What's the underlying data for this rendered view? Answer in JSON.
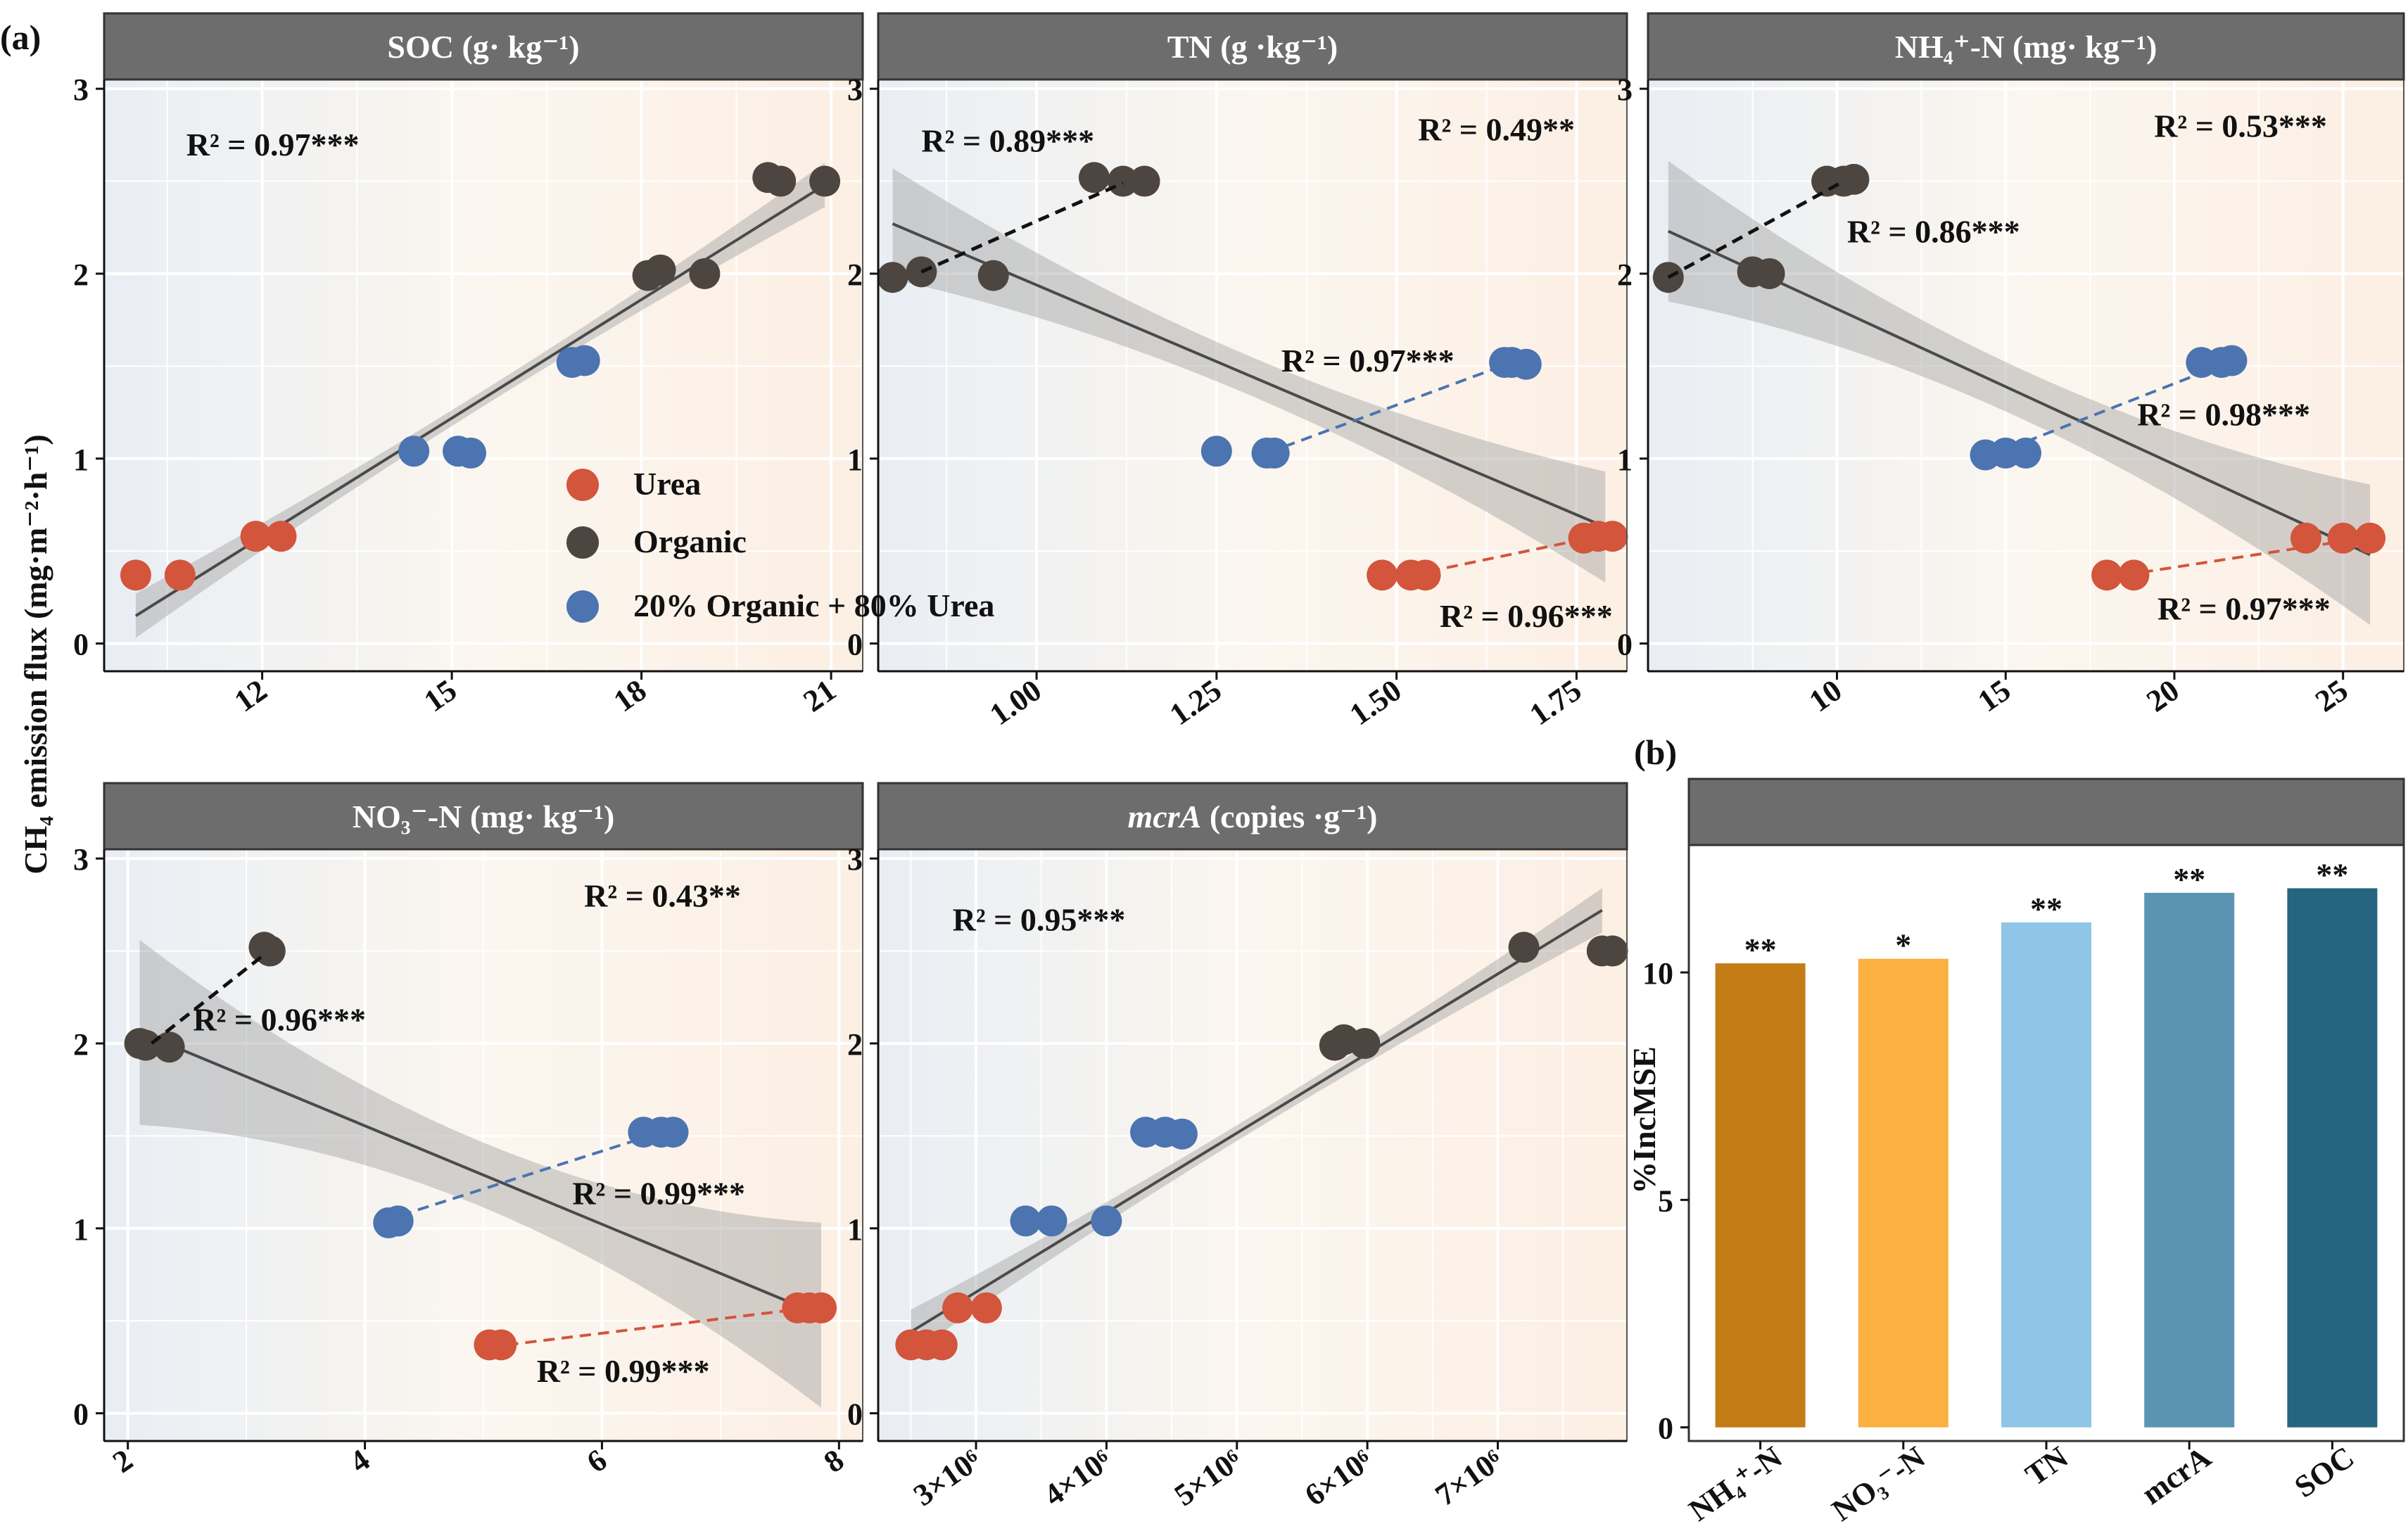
{
  "labels": {
    "panel_a": "(a)",
    "panel_b": "(b)",
    "y_axis_a": "CH₄ emission flux (mg·m⁻²·h⁻¹)",
    "y_axis_b": "%IncMSE"
  },
  "legend": [
    {
      "label": "Urea",
      "color": "#d2553c"
    },
    {
      "label": "Organic",
      "color": "#4d4640"
    },
    {
      "label": "20% Organic + 80% Urea",
      "color": "#4b74b0"
    }
  ],
  "colors": {
    "urea": "#d2553c",
    "organic": "#4d4640",
    "mix": "#4b74b0",
    "strip": "#6d6d6d"
  },
  "chart_data": [
    {
      "type": "scatter",
      "title": "SOC (g· kg⁻¹)",
      "xlim": [
        9.5,
        21.5
      ],
      "ylim": [
        -0.15,
        3.05
      ],
      "xticks": [
        12,
        15,
        18,
        21
      ],
      "xtick_labels": [
        "12",
        "15",
        "18",
        "21"
      ],
      "yticks": [
        0,
        1,
        2,
        3
      ],
      "ytick_labels": [
        "0",
        "1",
        "2",
        "3"
      ],
      "series": [
        {
          "name": "Urea",
          "x": [
            10.0,
            10.7,
            11.9,
            12.3
          ],
          "y": [
            0.37,
            0.37,
            0.58,
            0.58
          ]
        },
        {
          "name": "Organic",
          "x": [
            18.1,
            18.3,
            19.0,
            20.0,
            20.2,
            20.9
          ],
          "y": [
            1.99,
            2.02,
            2.0,
            2.52,
            2.5,
            2.5
          ]
        },
        {
          "name": "20% Organic + 80% Urea",
          "x": [
            14.4,
            15.1,
            15.3,
            16.9,
            17.1
          ],
          "y": [
            1.04,
            1.04,
            1.03,
            1.52,
            1.53
          ]
        }
      ],
      "fits": [
        {
          "type": "overall",
          "x": [
            10.0,
            20.9
          ],
          "y": [
            0.15,
            2.48
          ],
          "band": 0.12
        }
      ],
      "annotations": [
        {
          "text": "R² = 0.97***",
          "x": 10.8,
          "y": 2.64
        }
      ]
    },
    {
      "type": "scatter",
      "title": "TN  (g ·kg⁻¹)",
      "xlim": [
        0.78,
        1.82
      ],
      "ylim": [
        -0.15,
        3.05
      ],
      "xticks": [
        1.0,
        1.25,
        1.5,
        1.75
      ],
      "xtick_labels": [
        "1.00",
        "1.25",
        "1.50",
        "1.75"
      ],
      "yticks": [
        0,
        1,
        2,
        3
      ],
      "ytick_labels": [
        "0",
        "1",
        "2",
        "3"
      ],
      "series": [
        {
          "name": "Urea",
          "x": [
            1.48,
            1.52,
            1.54,
            1.76,
            1.78,
            1.8
          ],
          "y": [
            0.37,
            0.37,
            0.37,
            0.57,
            0.58,
            0.58
          ]
        },
        {
          "name": "Organic",
          "x": [
            0.8,
            0.84,
            0.94,
            1.08,
            1.12,
            1.15
          ],
          "y": [
            1.98,
            2.01,
            1.99,
            2.52,
            2.5,
            2.5
          ]
        },
        {
          "name": "20% Organic + 80% Urea",
          "x": [
            1.25,
            1.32,
            1.33,
            1.65,
            1.66,
            1.68
          ],
          "y": [
            1.04,
            1.03,
            1.03,
            1.52,
            1.52,
            1.51
          ]
        }
      ],
      "fits": [
        {
          "type": "overall",
          "x": [
            0.8,
            1.79
          ],
          "y": [
            2.27,
            0.63
          ],
          "band": 0.3
        },
        {
          "type": "organic",
          "x": [
            0.84,
            1.12
          ],
          "y": [
            2.01,
            2.49
          ]
        },
        {
          "type": "mix",
          "x": [
            1.32,
            1.66
          ],
          "y": [
            1.03,
            1.52
          ]
        },
        {
          "type": "urea",
          "x": [
            1.52,
            1.78
          ],
          "y": [
            0.37,
            0.58
          ]
        }
      ],
      "annotations": [
        {
          "text": "R² = 0.89***",
          "x": 0.84,
          "y": 2.66
        },
        {
          "text": "R² = 0.49**",
          "x": 1.53,
          "y": 2.72
        },
        {
          "text": "R² = 0.97***",
          "x": 1.34,
          "y": 1.47
        },
        {
          "text": "R² = 0.96***",
          "x": 1.56,
          "y": 0.09
        }
      ]
    },
    {
      "type": "scatter",
      "title": "NH₄⁺-N  (mg· kg⁻¹)",
      "xlim": [
        4.4,
        26.8
      ],
      "ylim": [
        -0.15,
        3.05
      ],
      "xticks": [
        10,
        15,
        20,
        25
      ],
      "xtick_labels": [
        "10",
        "15",
        "20",
        "25"
      ],
      "yticks": [
        0,
        1,
        2,
        3
      ],
      "ytick_labels": [
        "0",
        "1",
        "2",
        "3"
      ],
      "series": [
        {
          "name": "Urea",
          "x": [
            18.0,
            18.8,
            23.9,
            25.0,
            25.8
          ],
          "y": [
            0.37,
            0.37,
            0.57,
            0.57,
            0.57
          ]
        },
        {
          "name": "Organic",
          "x": [
            5.0,
            7.5,
            8.0,
            9.7,
            10.2,
            10.5
          ],
          "y": [
            1.98,
            2.01,
            2.0,
            2.5,
            2.5,
            2.51
          ]
        },
        {
          "name": "20% Organic + 80% Urea",
          "x": [
            14.4,
            15.0,
            15.6,
            20.8,
            21.4,
            21.7
          ],
          "y": [
            1.02,
            1.03,
            1.03,
            1.52,
            1.52,
            1.53
          ]
        }
      ],
      "fits": [
        {
          "type": "overall",
          "x": [
            5.0,
            25.8
          ],
          "y": [
            2.23,
            0.48
          ],
          "band": 0.38
        },
        {
          "type": "organic",
          "x": [
            5.0,
            10.2
          ],
          "y": [
            1.98,
            2.5
          ]
        },
        {
          "type": "mix",
          "x": [
            14.6,
            21.6
          ],
          "y": [
            1.02,
            1.52
          ]
        },
        {
          "type": "urea",
          "x": [
            18.5,
            25.6
          ],
          "y": [
            0.37,
            0.57
          ]
        }
      ],
      "annotations": [
        {
          "text": "R² = 0.86***",
          "x": 10.3,
          "y": 2.17
        },
        {
          "text": "R² = 0.53***",
          "x": 19.4,
          "y": 2.74
        },
        {
          "text": "R² = 0.98***",
          "x": 18.9,
          "y": 1.18
        },
        {
          "text": "R² = 0.97***",
          "x": 19.5,
          "y": 0.13
        }
      ]
    },
    {
      "type": "scatter",
      "title": "NO₃⁻-N  (mg· kg⁻¹)",
      "xlim": [
        1.8,
        8.2
      ],
      "ylim": [
        -0.15,
        3.05
      ],
      "xticks": [
        2,
        4,
        6,
        8
      ],
      "xtick_labels": [
        "2",
        "4",
        "6",
        "8"
      ],
      "yticks": [
        0,
        1,
        2,
        3
      ],
      "ytick_labels": [
        "0",
        "1",
        "2",
        "3"
      ],
      "series": [
        {
          "name": "Urea",
          "x": [
            5.05,
            5.15,
            7.65,
            7.75,
            7.85
          ],
          "y": [
            0.37,
            0.37,
            0.57,
            0.57,
            0.57
          ]
        },
        {
          "name": "Organic",
          "x": [
            2.1,
            2.15,
            2.35,
            3.15,
            3.2
          ],
          "y": [
            2.0,
            1.99,
            1.98,
            2.52,
            2.5
          ]
        },
        {
          "name": "20% Organic + 80% Urea",
          "x": [
            4.2,
            4.28,
            6.35,
            6.5,
            6.6
          ],
          "y": [
            1.03,
            1.04,
            1.52,
            1.52,
            1.52
          ]
        }
      ],
      "fits": [
        {
          "type": "overall",
          "x": [
            2.1,
            7.85
          ],
          "y": [
            2.06,
            0.53
          ],
          "band": 0.5
        },
        {
          "type": "organic",
          "x": [
            2.2,
            3.15
          ],
          "y": [
            2.0,
            2.48
          ]
        },
        {
          "type": "mix",
          "x": [
            4.3,
            6.5
          ],
          "y": [
            1.07,
            1.52
          ]
        },
        {
          "type": "urea",
          "x": [
            5.2,
            7.75
          ],
          "y": [
            0.37,
            0.57
          ]
        }
      ],
      "annotations": [
        {
          "text": "R² = 0.43**",
          "x": 5.85,
          "y": 2.74
        },
        {
          "text": "R² = 0.96***",
          "x": 2.55,
          "y": 2.07
        },
        {
          "text": "R² = 0.99***",
          "x": 5.75,
          "y": 1.13
        },
        {
          "text": "R² = 0.99***",
          "x": 5.45,
          "y": 0.17
        }
      ]
    },
    {
      "type": "scatter",
      "title_italic": "mcrA",
      "title": " (copies ·g⁻¹)",
      "xlim": [
        2.25,
        7.99
      ],
      "ylim": [
        -0.15,
        3.05
      ],
      "xticks": [
        3,
        4,
        5,
        6,
        7
      ],
      "xtick_labels": [
        "3×10⁶",
        "4×10⁶",
        "5×10⁶",
        "6×10⁶",
        "7×10⁶"
      ],
      "yticks": [
        0,
        1,
        2,
        3
      ],
      "ytick_labels": [
        "0",
        "1",
        "2",
        "3"
      ],
      "series": [
        {
          "name": "Urea",
          "x": [
            2.5,
            2.62,
            2.74,
            2.86,
            3.08
          ],
          "y": [
            0.37,
            0.37,
            0.37,
            0.57,
            0.57
          ]
        },
        {
          "name": "Organic",
          "x": [
            5.75,
            5.82,
            5.98,
            7.2,
            7.8,
            7.88
          ],
          "y": [
            1.99,
            2.02,
            2.0,
            2.52,
            2.5,
            2.5
          ]
        },
        {
          "name": "20% Organic + 80% Urea",
          "x": [
            3.38,
            3.58,
            4.0,
            4.3,
            4.45,
            4.58
          ],
          "y": [
            1.04,
            1.04,
            1.04,
            1.52,
            1.52,
            1.51
          ]
        }
      ],
      "fits": [
        {
          "type": "overall",
          "x": [
            2.5,
            7.8
          ],
          "y": [
            0.44,
            2.72
          ],
          "band": 0.12
        }
      ],
      "annotations": [
        {
          "text": "R² = 0.95***",
          "x": 2.82,
          "y": 2.61
        }
      ]
    },
    {
      "type": "bar",
      "categories": [
        "NH₄⁺-N",
        "NO₃⁻-N",
        "TN",
        "mcrA",
        "SOC"
      ],
      "values": [
        10.2,
        10.3,
        11.1,
        11.75,
        11.85
      ],
      "significance": [
        "**",
        "*",
        "**",
        "**",
        "**"
      ],
      "colors": [
        "#c47c17",
        "#fbb040",
        "#8fc5e6",
        "#5b94b3",
        "#266582"
      ],
      "ylabel": "%IncMSE",
      "ylim": [
        -0.3,
        12.8
      ],
      "yticks": [
        0,
        5,
        10
      ],
      "ytick_labels": [
        "0",
        "5",
        "10"
      ]
    }
  ]
}
